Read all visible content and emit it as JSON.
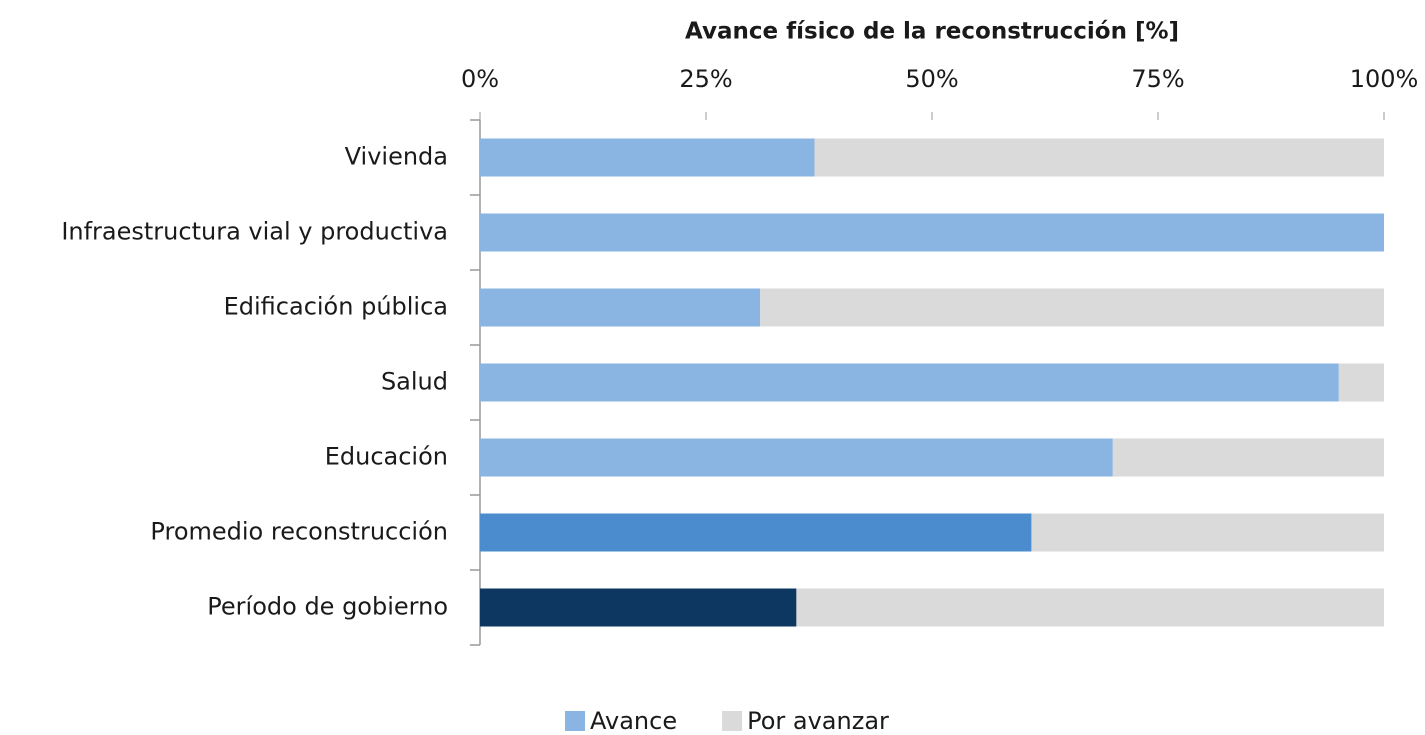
{
  "chart_data": {
    "type": "stacked-bar-horizontal",
    "title": "Avance físico de la reconstrucción [%]",
    "categories": [
      "Vivienda",
      "Infraestructura vial y productiva",
      "Edificación pública",
      "Salud",
      "Educación",
      "Promedio reconstrucción",
      "Período de gobierno"
    ],
    "series": [
      {
        "name": "Avance",
        "color": "#8ab4e2",
        "colors": [
          "#8ab4e2",
          "#8ab4e2",
          "#8ab4e2",
          "#8ab4e2",
          "#8ab4e2",
          "#4a8ccd",
          "#0d3660"
        ],
        "values": [
          37,
          100,
          31,
          95,
          70,
          61,
          35
        ]
      },
      {
        "name": "Por avanzar",
        "color": "#dadadb",
        "values": [
          63,
          0,
          69,
          5,
          30,
          39,
          65
        ]
      }
    ],
    "xlim": [
      0,
      100
    ],
    "xticks": [
      {
        "value": 0,
        "label": "0%"
      },
      {
        "value": 25,
        "label": "25%"
      },
      {
        "value": 50,
        "label": "50%"
      },
      {
        "value": 75,
        "label": "75%"
      },
      {
        "value": 100,
        "label": "100%"
      }
    ],
    "legend": "bottom"
  }
}
